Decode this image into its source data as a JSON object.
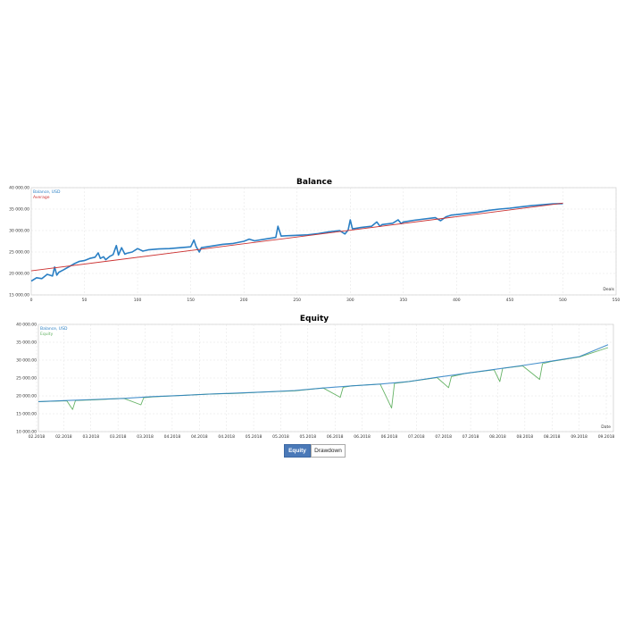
{
  "colors": {
    "balance": "#2a7fc4",
    "average": "#cc3333",
    "equity": "#66b366",
    "grid": "#e3e3e3",
    "frame": "#cfcfcf",
    "active_tab": "#4a79b8"
  },
  "toggle": {
    "equity_label": "Equity",
    "drawdown_label": "Drawdown",
    "active": "Equity"
  },
  "chart_data": [
    {
      "type": "line",
      "title": "Balance",
      "xlabel": "Deals",
      "xlim": [
        0,
        550
      ],
      "ylim": [
        15000,
        40000
      ],
      "x_ticks": [
        0,
        50,
        100,
        150,
        200,
        250,
        300,
        350,
        400,
        450,
        500,
        550
      ],
      "y_ticks": [
        15000,
        20000,
        25000,
        30000,
        35000,
        40000
      ],
      "y_tick_labels": [
        "15 000.00",
        "20 000.00",
        "25 000.00",
        "30 000.00",
        "35 000.00",
        "40 000.00"
      ],
      "grid": true,
      "legend": "top-left",
      "series": [
        {
          "name": "Balance, USD",
          "color": "#2a7fc4",
          "x": [
            0,
            5,
            10,
            15,
            20,
            22,
            24,
            26,
            30,
            35,
            40,
            45,
            50,
            55,
            60,
            63,
            65,
            68,
            70,
            74,
            77,
            80,
            82,
            85,
            88,
            90,
            95,
            100,
            105,
            110,
            115,
            120,
            130,
            140,
            150,
            153,
            155,
            158,
            160,
            170,
            180,
            190,
            200,
            205,
            210,
            220,
            230,
            232,
            235,
            240,
            250,
            260,
            270,
            280,
            290,
            295,
            298,
            300,
            302,
            305,
            310,
            320,
            325,
            328,
            330,
            340,
            345,
            348,
            350,
            360,
            370,
            380,
            385,
            390,
            395,
            400,
            410,
            420,
            430,
            440,
            450,
            460,
            470,
            480,
            490,
            500
          ],
          "y": [
            18200,
            19000,
            18800,
            19800,
            19400,
            21500,
            19600,
            20300,
            20800,
            21500,
            22200,
            22800,
            23000,
            23500,
            23800,
            24800,
            23500,
            23900,
            23200,
            24000,
            24400,
            26500,
            24300,
            26000,
            24500,
            24700,
            25000,
            25800,
            25200,
            25500,
            25600,
            25700,
            25800,
            26000,
            26200,
            27800,
            26300,
            25000,
            26000,
            26400,
            26800,
            27000,
            27500,
            28000,
            27600,
            28000,
            28400,
            31000,
            28700,
            28800,
            28900,
            29000,
            29300,
            29700,
            30000,
            29200,
            30100,
            32500,
            30400,
            30500,
            30700,
            31000,
            32000,
            31000,
            31400,
            31700,
            32500,
            31600,
            32000,
            32400,
            32700,
            33000,
            32300,
            33200,
            33600,
            33700,
            34000,
            34300,
            34700,
            35000,
            35200,
            35500,
            35800,
            36000,
            36200,
            36300
          ]
        },
        {
          "name": "Average",
          "color": "#cc3333",
          "x": [
            0,
            500
          ],
          "y": [
            20600,
            36400
          ]
        }
      ]
    },
    {
      "type": "line",
      "title": "Equity",
      "xlabel": "Date",
      "ylim": [
        10000,
        40000
      ],
      "y_ticks": [
        10000,
        15000,
        20000,
        25000,
        30000,
        35000,
        40000
      ],
      "y_tick_labels": [
        "10 000.00",
        "15 000.00",
        "20 000.00",
        "25 000.00",
        "30 000.00",
        "35 000.00",
        "40 000.00"
      ],
      "x_tick_labels": [
        "02.2018",
        "02.2018",
        "03.2018",
        "03.2018",
        "03.2018",
        "04.2018",
        "04.2018",
        "04.2018",
        "05.2018",
        "05.2018",
        "05.2018",
        "06.2018",
        "06.2018",
        "06.2018",
        "07.2018",
        "07.2018",
        "07.2018",
        "08.2018",
        "08.2018",
        "08.2018",
        "09.2018",
        "09.2018"
      ],
      "grid": true,
      "legend": "top-left",
      "series": [
        {
          "name": "Balance, USD",
          "color": "#2a7fc4",
          "x": [
            0,
            0.05,
            0.1,
            0.15,
            0.2,
            0.25,
            0.3,
            0.35,
            0.4,
            0.45,
            0.5,
            0.55,
            0.6,
            0.65,
            0.7,
            0.75,
            0.8,
            0.85,
            0.9,
            0.95,
            1
          ],
          "y": [
            18400,
            18700,
            19000,
            19300,
            19800,
            20100,
            20500,
            20800,
            21100,
            21500,
            22200,
            22800,
            23300,
            24000,
            25200,
            26300,
            27400,
            28500,
            29700,
            31000,
            34300
          ]
        },
        {
          "name": "Equity",
          "color": "#66b366",
          "x": [
            0,
            0.05,
            0.06,
            0.065,
            0.1,
            0.15,
            0.18,
            0.185,
            0.2,
            0.25,
            0.3,
            0.35,
            0.4,
            0.45,
            0.5,
            0.53,
            0.535,
            0.55,
            0.6,
            0.62,
            0.625,
            0.65,
            0.7,
            0.72,
            0.725,
            0.75,
            0.8,
            0.81,
            0.815,
            0.85,
            0.88,
            0.885,
            0.9,
            0.95,
            1
          ],
          "y": [
            18400,
            18600,
            16200,
            18700,
            18900,
            19300,
            17500,
            19500,
            19700,
            20100,
            20500,
            20700,
            21100,
            21400,
            22200,
            19600,
            22400,
            22800,
            23300,
            16600,
            23500,
            24000,
            25100,
            22300,
            25400,
            26300,
            27300,
            24000,
            27700,
            28400,
            24600,
            29000,
            29600,
            30900,
            33500
          ]
        }
      ]
    }
  ]
}
